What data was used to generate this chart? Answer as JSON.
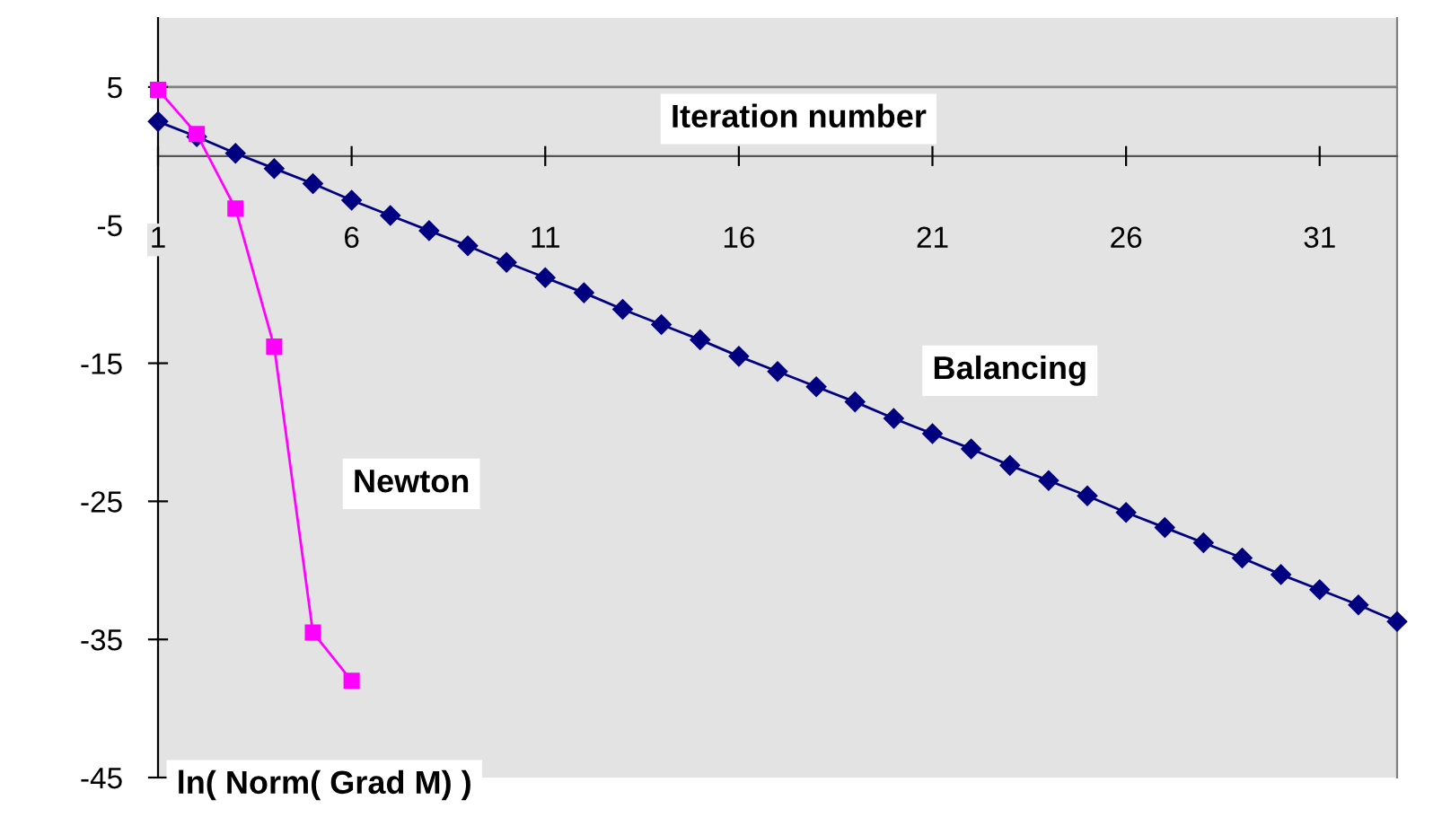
{
  "chart_data": {
    "type": "line",
    "xlabel": "Iteration number",
    "annotations": [
      "ln( Norm( Grad M) )"
    ],
    "xlim": [
      1,
      33
    ],
    "xticks": [
      1,
      6,
      11,
      16,
      21,
      26,
      31
    ],
    "ylim": [
      -45,
      10
    ],
    "yticks": [
      5,
      -5,
      -15,
      -25,
      -35,
      -45
    ],
    "grid": false,
    "legend": false,
    "line_style": "solid",
    "ref_lines": [
      {
        "axis": "y",
        "value": 5,
        "color": "#808080"
      }
    ],
    "series": [
      {
        "name": "Newton",
        "color": "#ff00ff",
        "marker": "square",
        "x": [
          1,
          2,
          3,
          4,
          5,
          6
        ],
        "values": [
          4.8,
          1.6,
          -3.8,
          -13.8,
          -34.5,
          -38.0
        ]
      },
      {
        "name": "Balancing",
        "color": "#000080",
        "marker": "diamond",
        "x": [
          1,
          2,
          3,
          4,
          5,
          6,
          7,
          8,
          9,
          10,
          11,
          12,
          13,
          14,
          15,
          16,
          17,
          18,
          19,
          20,
          21,
          22,
          23,
          24,
          25,
          26,
          27,
          28,
          29,
          30,
          31,
          32,
          33
        ],
        "values": [
          2.5,
          1.4,
          0.2,
          -0.9,
          -2.0,
          -3.2,
          -4.3,
          -5.4,
          -6.5,
          -7.7,
          -8.8,
          -9.9,
          -11.1,
          -12.2,
          -13.3,
          -14.5,
          -15.6,
          -16.7,
          -17.8,
          -19.0,
          -20.1,
          -21.2,
          -22.4,
          -23.5,
          -24.6,
          -25.8,
          -26.9,
          -28.0,
          -29.1,
          -30.3,
          -31.4,
          -32.5,
          -33.7
        ]
      }
    ]
  }
}
